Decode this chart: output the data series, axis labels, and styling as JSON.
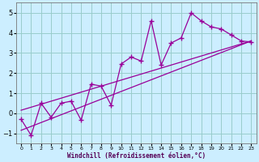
{
  "xlabel": "Windchill (Refroidissement éolien,°C)",
  "bg_color": "#cceeff",
  "line_color": "#990099",
  "grid_color": "#99cccc",
  "x_data": [
    0,
    1,
    2,
    3,
    4,
    5,
    6,
    7,
    8,
    9,
    10,
    11,
    12,
    13,
    14,
    15,
    16,
    17,
    18,
    19,
    20,
    21,
    22,
    23
  ],
  "y_data": [
    -0.3,
    -1.1,
    0.5,
    -0.2,
    0.5,
    0.6,
    -0.35,
    1.45,
    1.35,
    0.4,
    2.45,
    2.8,
    2.6,
    4.6,
    2.4,
    3.5,
    3.75,
    5.0,
    4.6,
    4.3,
    4.2,
    3.9,
    3.6,
    3.55
  ],
  "line1_x": [
    0,
    23
  ],
  "line1_y": [
    0.15,
    3.6
  ],
  "line2_x": [
    0,
    23
  ],
  "line2_y": [
    -0.85,
    3.6
  ],
  "xlim": [
    -0.5,
    23.5
  ],
  "ylim": [
    -1.5,
    5.5
  ],
  "xticks": [
    0,
    1,
    2,
    3,
    4,
    5,
    6,
    7,
    8,
    9,
    10,
    11,
    12,
    13,
    14,
    15,
    16,
    17,
    18,
    19,
    20,
    21,
    22,
    23
  ],
  "yticks": [
    -1,
    0,
    1,
    2,
    3,
    4,
    5
  ]
}
